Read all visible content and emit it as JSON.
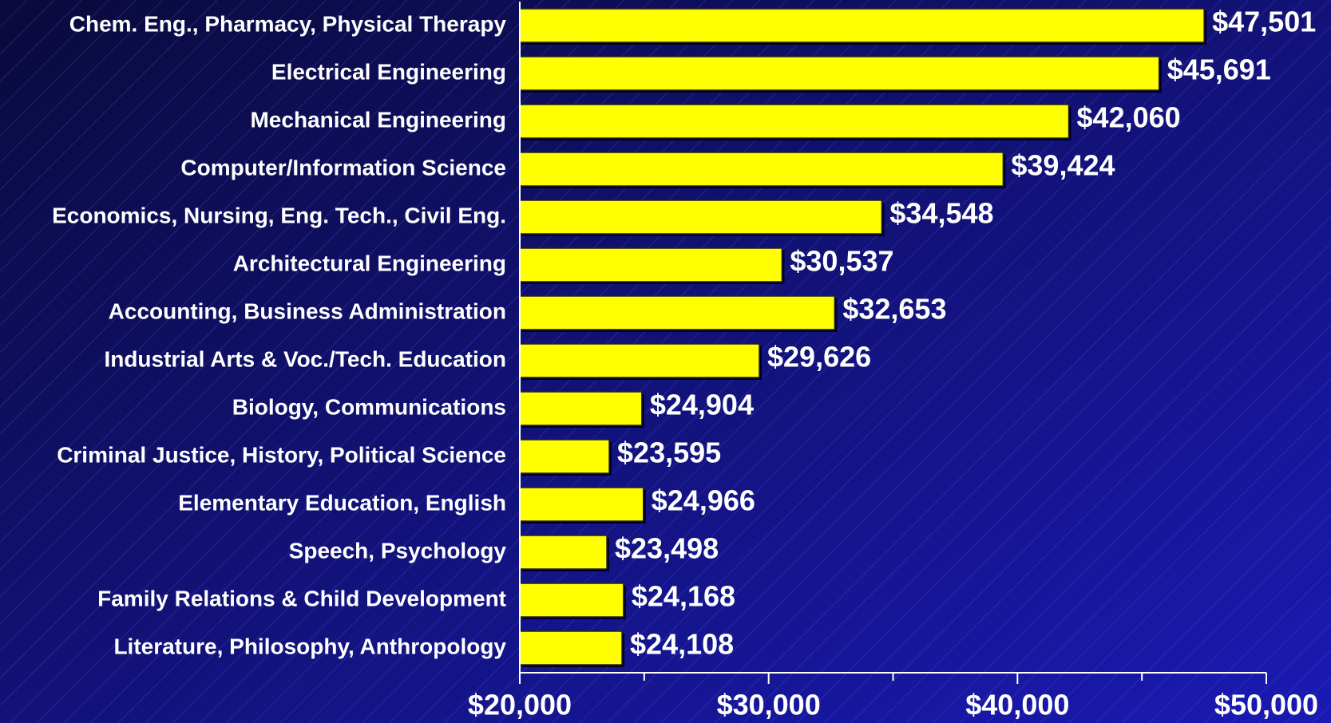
{
  "chart_data": {
    "type": "bar",
    "orientation": "horizontal",
    "categories": [
      "Chem. Eng., Pharmacy, Physical Therapy",
      "Electrical Engineering",
      "Mechanical Engineering",
      "Computer/Information Science",
      "Economics, Nursing, Eng. Tech., Civil Eng.",
      "Architectural Engineering",
      "Accounting, Business Administration",
      "Industrial Arts & Voc./Tech. Education",
      "Biology, Communications",
      "Criminal Justice, History, Political Science",
      "Elementary Education, English",
      "Speech, Psychology",
      "Family Relations & Child Development",
      "Literature, Philosophy, Anthropology"
    ],
    "values": [
      47501,
      45691,
      42060,
      39424,
      34548,
      30537,
      32653,
      29626,
      24904,
      23595,
      24966,
      23498,
      24168,
      24108
    ],
    "value_labels": [
      "$47,501",
      "$45,691",
      "$42,060",
      "$39,424",
      "$34,548",
      "$30,537",
      "$32,653",
      "$29,626",
      "$24,904",
      "$23,595",
      "$24,966",
      "$23,498",
      "$24,168",
      "$24,108"
    ],
    "color": "#ffff00",
    "xlim": [
      20000,
      50000
    ],
    "xticks": [
      {
        "value": 20000,
        "label": "$20,000"
      },
      {
        "value": 30000,
        "label": "$30,000"
      },
      {
        "value": 40000,
        "label": "$40,000"
      },
      {
        "value": 50000,
        "label": "$50,000"
      }
    ],
    "xminor_ticks": [
      25000,
      35000,
      45000
    ]
  }
}
